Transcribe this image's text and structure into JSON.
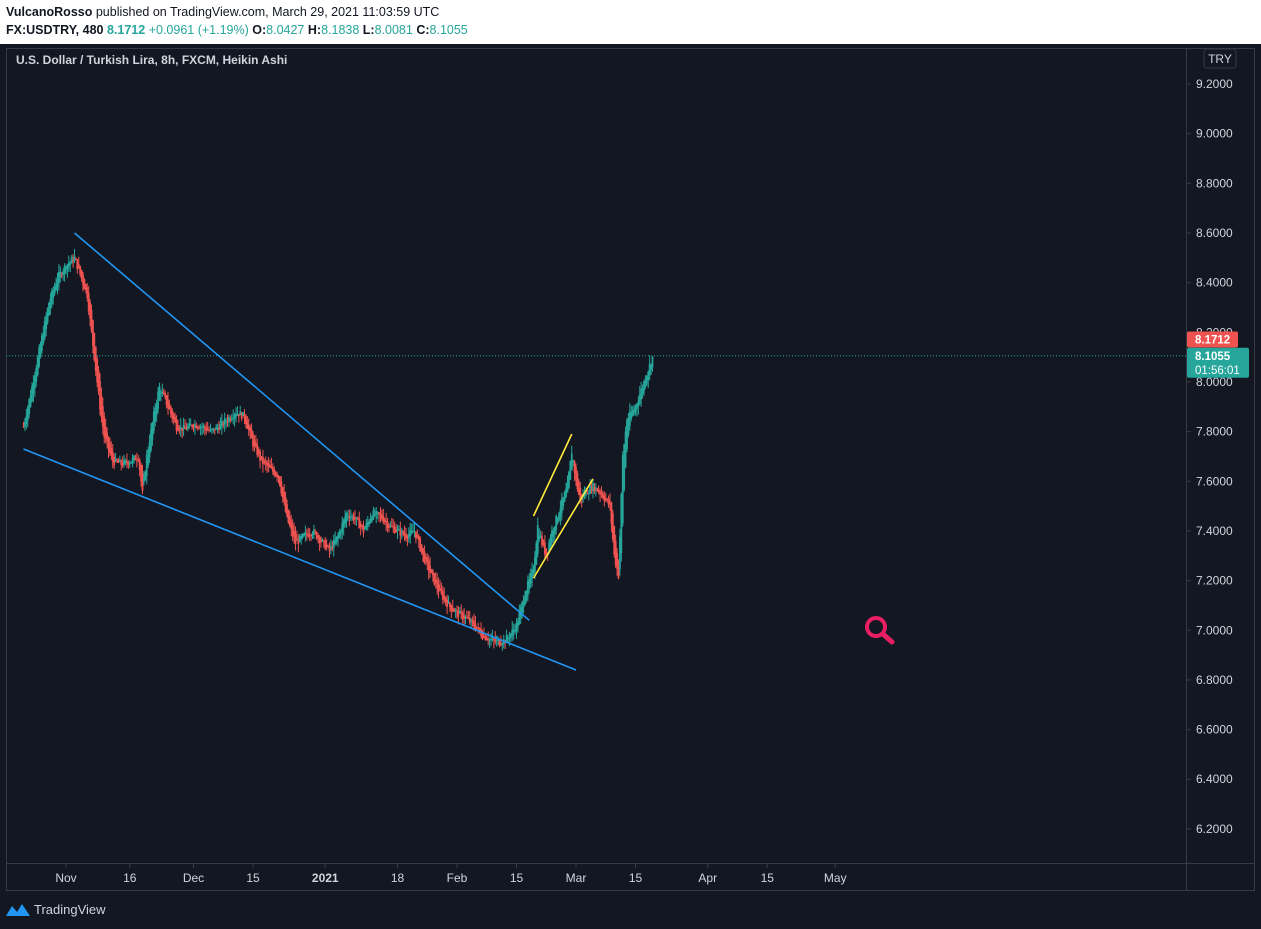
{
  "header": {
    "author": "VulcanoRosso",
    "published_text": " published on TradingView.com, March 29, 2021 11:03:59 UTC",
    "symbol": "FX:USDTRY, 480",
    "last": "8.1712",
    "change": "+0.0961 (+1.19%)",
    "o_label": "O:",
    "o_value": "8.0427",
    "h_label": "H:",
    "h_value": "8.1838",
    "l_label": "L:",
    "l_value": "8.0081",
    "c_label": "C:",
    "c_value": "8.1055"
  },
  "chart_title": "U.S. Dollar / Turkish Lira, 8h, FXCM, Heikin Ashi",
  "currency_badge": "TRY",
  "price_tags": {
    "last": "8.1712",
    "close": "8.1055",
    "countdown": "01:56:01"
  },
  "footer": {
    "brand": "TradingView"
  },
  "colors": {
    "background": "#131722",
    "up": "#26a69a",
    "down": "#ef5350",
    "trendline": "#2196f3",
    "channel": "#ffeb3b",
    "marker": "#e91e63"
  },
  "chart_data": {
    "type": "candlestick",
    "chart_style": "Heikin Ashi",
    "y_axis": {
      "min": 6.0,
      "max": 9.32,
      "ticks": [
        "9.2000",
        "9.0000",
        "8.8000",
        "8.6000",
        "8.4000",
        "8.2000",
        "8.0000",
        "7.8000",
        "7.6000",
        "7.4000",
        "7.2000",
        "7.0000",
        "6.8000",
        "6.6000",
        "6.4000",
        "6.2000"
      ]
    },
    "x_axis": {
      "ticks": [
        {
          "label": "Nov",
          "bold": false,
          "day": 0
        },
        {
          "label": "16",
          "bold": false,
          "day": 15
        },
        {
          "label": "Dec",
          "bold": false,
          "day": 30
        },
        {
          "label": "15",
          "bold": false,
          "day": 44
        },
        {
          "label": "2021",
          "bold": true,
          "day": 61
        },
        {
          "label": "18",
          "bold": false,
          "day": 78
        },
        {
          "label": "Feb",
          "bold": false,
          "day": 92
        },
        {
          "label": "15",
          "bold": false,
          "day": 106
        },
        {
          "label": "Mar",
          "bold": false,
          "day": 120
        },
        {
          "label": "15",
          "bold": false,
          "day": 134
        },
        {
          "label": "Apr",
          "bold": false,
          "day": 151
        },
        {
          "label": "15",
          "bold": false,
          "day": 165
        },
        {
          "label": "May",
          "bold": false,
          "day": 181
        }
      ]
    },
    "trend_path": [
      {
        "day": -10,
        "close": 7.82
      },
      {
        "day": -8,
        "close": 7.98
      },
      {
        "day": -6,
        "close": 8.15
      },
      {
        "day": -4,
        "close": 8.32
      },
      {
        "day": -2,
        "close": 8.42
      },
      {
        "day": 0,
        "close": 8.47
      },
      {
        "day": 2,
        "close": 8.5
      },
      {
        "day": 3,
        "close": 8.45
      },
      {
        "day": 5,
        "close": 8.35
      },
      {
        "day": 6,
        "close": 8.2
      },
      {
        "day": 7,
        "close": 8.05
      },
      {
        "day": 8,
        "close": 7.9
      },
      {
        "day": 9,
        "close": 7.78
      },
      {
        "day": 11,
        "close": 7.68
      },
      {
        "day": 13,
        "close": 7.67
      },
      {
        "day": 15,
        "close": 7.68
      },
      {
        "day": 17,
        "close": 7.7
      },
      {
        "day": 18,
        "close": 7.55
      },
      {
        "day": 19,
        "close": 7.7
      },
      {
        "day": 21,
        "close": 7.9
      },
      {
        "day": 22,
        "close": 7.98
      },
      {
        "day": 24,
        "close": 7.9
      },
      {
        "day": 26,
        "close": 7.82
      },
      {
        "day": 28,
        "close": 7.81
      },
      {
        "day": 30,
        "close": 7.83
      },
      {
        "day": 32,
        "close": 7.82
      },
      {
        "day": 34,
        "close": 7.8
      },
      {
        "day": 36,
        "close": 7.82
      },
      {
        "day": 38,
        "close": 7.85
      },
      {
        "day": 40,
        "close": 7.88
      },
      {
        "day": 42,
        "close": 7.86
      },
      {
        "day": 44,
        "close": 7.75
      },
      {
        "day": 46,
        "close": 7.68
      },
      {
        "day": 48,
        "close": 7.65
      },
      {
        "day": 50,
        "close": 7.62
      },
      {
        "day": 52,
        "close": 7.45
      },
      {
        "day": 54,
        "close": 7.35
      },
      {
        "day": 56,
        "close": 7.38
      },
      {
        "day": 58,
        "close": 7.4
      },
      {
        "day": 60,
        "close": 7.36
      },
      {
        "day": 62,
        "close": 7.32
      },
      {
        "day": 64,
        "close": 7.38
      },
      {
        "day": 66,
        "close": 7.47
      },
      {
        "day": 68,
        "close": 7.45
      },
      {
        "day": 70,
        "close": 7.4
      },
      {
        "day": 72,
        "close": 7.47
      },
      {
        "day": 74,
        "close": 7.46
      },
      {
        "day": 76,
        "close": 7.42
      },
      {
        "day": 78,
        "close": 7.4
      },
      {
        "day": 80,
        "close": 7.38
      },
      {
        "day": 82,
        "close": 7.4
      },
      {
        "day": 84,
        "close": 7.3
      },
      {
        "day": 86,
        "close": 7.22
      },
      {
        "day": 88,
        "close": 7.15
      },
      {
        "day": 90,
        "close": 7.1
      },
      {
        "day": 92,
        "close": 7.07
      },
      {
        "day": 94,
        "close": 7.05
      },
      {
        "day": 96,
        "close": 7.02
      },
      {
        "day": 98,
        "close": 6.98
      },
      {
        "day": 100,
        "close": 6.96
      },
      {
        "day": 102,
        "close": 6.95
      },
      {
        "day": 104,
        "close": 6.97
      },
      {
        "day": 106,
        "close": 7.02
      },
      {
        "day": 108,
        "close": 7.15
      },
      {
        "day": 110,
        "close": 7.25
      },
      {
        "day": 111,
        "close": 7.42
      },
      {
        "day": 112,
        "close": 7.35
      },
      {
        "day": 113,
        "close": 7.3
      },
      {
        "day": 114,
        "close": 7.38
      },
      {
        "day": 116,
        "close": 7.48
      },
      {
        "day": 118,
        "close": 7.58
      },
      {
        "day": 119,
        "close": 7.72
      },
      {
        "day": 120,
        "close": 7.6
      },
      {
        "day": 121,
        "close": 7.52
      },
      {
        "day": 122,
        "close": 7.55
      },
      {
        "day": 124,
        "close": 7.58
      },
      {
        "day": 126,
        "close": 7.55
      },
      {
        "day": 128,
        "close": 7.5
      },
      {
        "day": 129,
        "close": 7.3
      },
      {
        "day": 130,
        "close": 7.22
      },
      {
        "day": 131,
        "close": 7.7
      },
      {
        "day": 132,
        "close": 7.85
      },
      {
        "day": 134,
        "close": 7.9
      },
      {
        "day": 136,
        "close": 8.0
      },
      {
        "day": 138,
        "close": 8.1
      }
    ],
    "drawings": [
      {
        "name": "upper-trendline",
        "color": "#2196f3",
        "from": {
          "day": 2,
          "price": 8.6
        },
        "to": {
          "day": 109,
          "price": 7.04
        }
      },
      {
        "name": "lower-trendline",
        "color": "#2196f3",
        "from": {
          "day": -10,
          "price": 7.73
        },
        "to": {
          "day": 120,
          "price": 6.84
        }
      },
      {
        "name": "channel-upper",
        "color": "#ffeb3b",
        "from": {
          "day": 110,
          "price": 7.46
        },
        "to": {
          "day": 119,
          "price": 7.79
        }
      },
      {
        "name": "channel-lower",
        "color": "#ffeb3b",
        "from": {
          "day": 110,
          "price": 7.21
        },
        "to": {
          "day": 124,
          "price": 7.61
        }
      }
    ]
  }
}
